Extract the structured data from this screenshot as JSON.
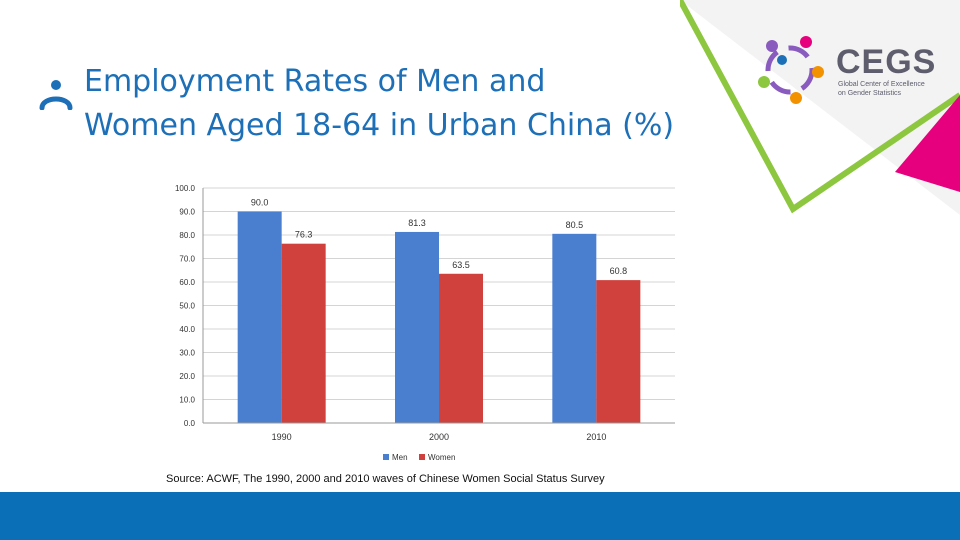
{
  "slide": {
    "title_line1": "Employment Rates of Men and",
    "title_line2": "Women Aged 18-64 in Urban China (%)",
    "source": "Source: ACWF, The 1990, 2000 and 2010 waves of Chinese Women Social Status Survey"
  },
  "logo": {
    "name": "CEGS",
    "subtitle_line1": "Global Center of Excellence",
    "subtitle_line2": "on Gender Statistics"
  },
  "colors": {
    "title": "#1d70b7",
    "men": "#4a7fd0",
    "women": "#d0403d",
    "bottom_bar": "#0b6fb8",
    "deco_green": "#8dc63f",
    "deco_pink": "#e6007e"
  },
  "chart_data": {
    "type": "bar",
    "categories": [
      "1990",
      "2000",
      "2010"
    ],
    "series": [
      {
        "name": "Men",
        "values": [
          90.0,
          81.3,
          80.5
        ],
        "labels": [
          "90.0",
          "81.3",
          "80.5"
        ]
      },
      {
        "name": "Women",
        "values": [
          76.3,
          63.5,
          60.8
        ],
        "labels": [
          "76.3",
          "63.5",
          "60.8"
        ]
      }
    ],
    "ylim": [
      0,
      100
    ],
    "yticks": [
      "0.0",
      "10.0",
      "20.0",
      "30.0",
      "40.0",
      "50.0",
      "60.0",
      "70.0",
      "80.0",
      "90.0",
      "100.0"
    ],
    "grid": true,
    "legend": "bottom",
    "title": "",
    "xlabel": "",
    "ylabel": ""
  }
}
